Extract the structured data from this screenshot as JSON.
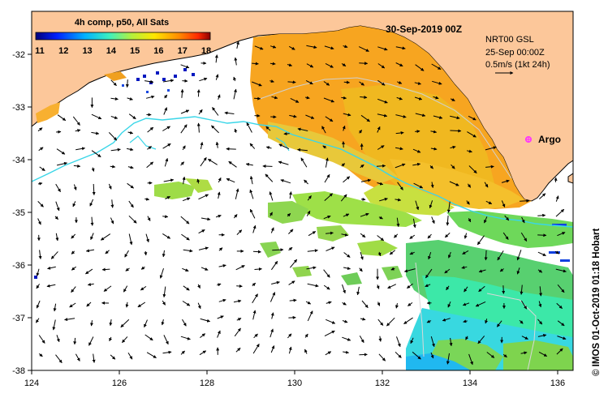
{
  "map": {
    "colorbar_title": "4h comp, p50, All Sats",
    "colorbar_ticks": [
      "11",
      "12",
      "13",
      "14",
      "15",
      "16",
      "17",
      "18"
    ],
    "colorbar_range": [
      11,
      18
    ],
    "datetime": "30-Sep-2019 00Z",
    "info_line1": "NRT00 GSL",
    "info_line2": "25-Sep 00:00Z",
    "info_line3": "0.5m/s (1kt 24h)",
    "argo_label": "Argo",
    "credit": "© IMOS 01-Oct-2019 01:18 Hobart",
    "x_ticks": [
      "124",
      "126",
      "128",
      "130",
      "132",
      "134",
      "136"
    ],
    "y_ticks": [
      "-32",
      "-33",
      "-34",
      "-35",
      "-36",
      "-37",
      "-38"
    ],
    "colors": {
      "land": "#fcc79a",
      "coast": "#000000",
      "contour_cyan": "#3ad6e8",
      "argo": "#ff33ff"
    }
  }
}
